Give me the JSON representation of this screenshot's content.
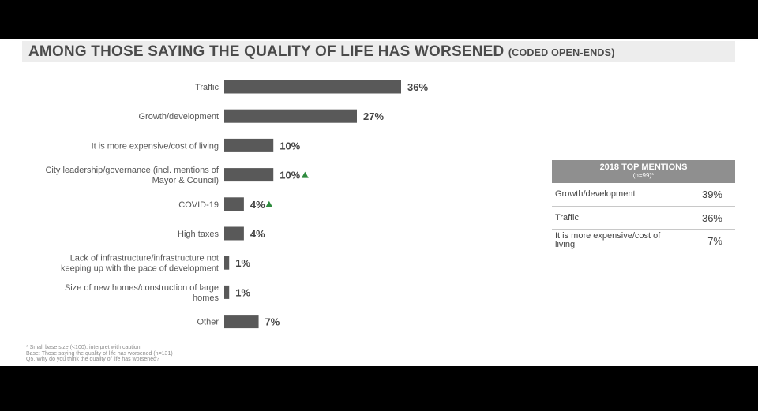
{
  "title": {
    "main": "AMONG THOSE SAYING THE QUALITY OF LIFE HAS WORSENED",
    "sub": "(CODED OPEN-ENDS)"
  },
  "chart_data": {
    "type": "bar",
    "orientation": "horizontal",
    "categories": [
      "Traffic",
      "Growth/development",
      "It is more expensive/cost of living",
      "City leadership/governance (incl. mentions of Mayor & Council)",
      "COVID-19",
      "High taxes",
      "Lack of infrastructure/infrastructure not keeping up with the pace of development",
      "Size of new homes/construction of large homes",
      "Other"
    ],
    "category_lines": [
      [
        "Traffic"
      ],
      [
        "Growth/development"
      ],
      [
        "It is more expensive/cost of living"
      ],
      [
        "City leadership/governance (incl. mentions of",
        "Mayor & Council)"
      ],
      [
        "COVID-19"
      ],
      [
        "High taxes"
      ],
      [
        "Lack of infrastructure/infrastructure not",
        "keeping up with the pace of development"
      ],
      [
        "Size of new homes/construction of large",
        "homes"
      ],
      [
        "Other"
      ]
    ],
    "values": [
      36,
      27,
      10,
      10,
      4,
      4,
      1,
      1,
      7
    ],
    "value_labels": [
      "36%",
      "27%",
      "10%",
      "10%",
      "4%",
      "4%",
      "1%",
      "1%",
      "7%"
    ],
    "significant_increase": [
      false,
      false,
      false,
      true,
      true,
      false,
      false,
      false,
      false
    ],
    "bar_color": "#595959",
    "increase_marker_color": "#2e8b3e",
    "xlim": [
      0,
      36
    ]
  },
  "top_mentions_2018": {
    "title": "2018 TOP MENTIONS",
    "subtitle": "(n=99)*",
    "rows": [
      {
        "label": "Growth/development",
        "value": "39%"
      },
      {
        "label": "Traffic",
        "value": "36%"
      },
      {
        "label": "It is more expensive/cost of living",
        "value": "7%"
      }
    ]
  },
  "footnotes": [
    "* Small base size (<100), interpret with caution.",
    "Base: Those saying the quality of life has worsened (n=131)",
    "Q5. Why do you think the quality of life has worsened?"
  ]
}
